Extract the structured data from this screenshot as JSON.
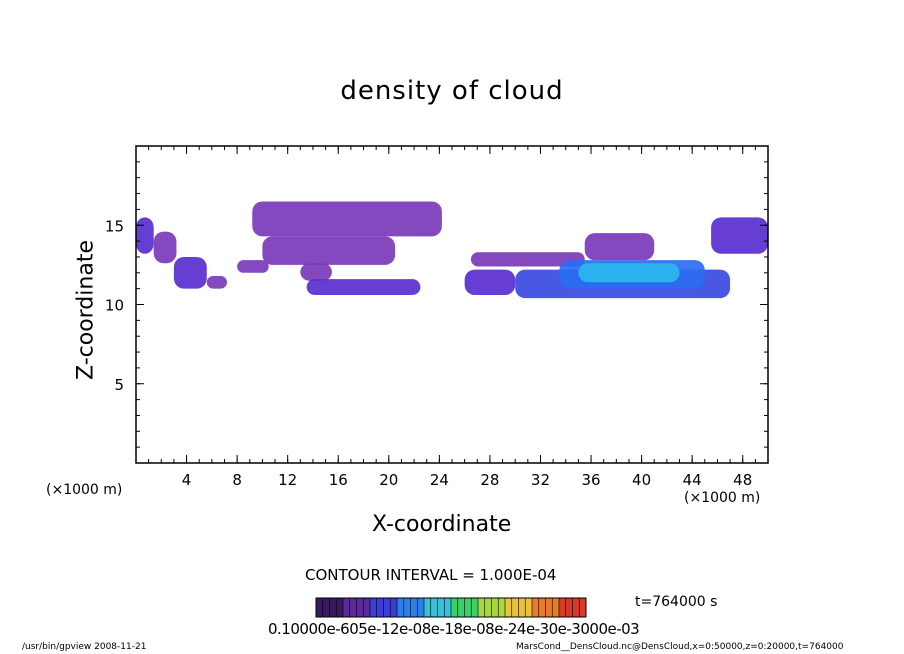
{
  "chart_data": {
    "type": "heatmap",
    "title": "density of cloud",
    "xlabel": "X-coordinate",
    "ylabel": "Z-coordinate",
    "x_unit_left": "(×1000 m)",
    "x_unit_right": "(×1000 m)",
    "xlim": [
      0,
      50
    ],
    "ylim": [
      0,
      20
    ],
    "xticks": [
      4,
      8,
      12,
      16,
      20,
      24,
      28,
      32,
      36,
      40,
      44,
      48
    ],
    "yticks": [
      5,
      10,
      15
    ],
    "contour_interval": "CONTOUR INTERVAL = 1.000E-04",
    "time": "t=764000 s",
    "colorbar_labels": "0.10000e-605e-12e-08e-18e-08e-24e-30e-3000e-03",
    "colorbar_colors": [
      "#3a1a5e",
      "#5a2a9a",
      "#3b3fd8",
      "#2a80e8",
      "#38c0d8",
      "#3ccf6a",
      "#a8d83c",
      "#e8c23c",
      "#e87a2c",
      "#d83a2a"
    ],
    "regions": [
      {
        "x0": 0,
        "x1": 1.4,
        "y0": 13.2,
        "y1": 15.5,
        "level": 1
      },
      {
        "x0": 1.4,
        "x1": 3.2,
        "y0": 12.6,
        "y1": 14.6,
        "level": 0
      },
      {
        "x0": 3.0,
        "x1": 5.6,
        "y0": 11.0,
        "y1": 13.0,
        "level": 1
      },
      {
        "x0": 5.6,
        "x1": 7.2,
        "y0": 11.0,
        "y1": 11.8,
        "level": 0
      },
      {
        "x0": 8.0,
        "x1": 10.5,
        "y0": 12.0,
        "y1": 12.8,
        "level": 0
      },
      {
        "x0": 9.2,
        "x1": 24.2,
        "y0": 14.3,
        "y1": 16.5,
        "level": 0
      },
      {
        "x0": 10.0,
        "x1": 20.5,
        "y0": 12.5,
        "y1": 14.3,
        "level": 0
      },
      {
        "x0": 13.0,
        "x1": 15.5,
        "y0": 11.5,
        "y1": 12.6,
        "level": 0
      },
      {
        "x0": 13.5,
        "x1": 22.5,
        "y0": 10.6,
        "y1": 11.6,
        "level": 1
      },
      {
        "x0": 26.0,
        "x1": 30.0,
        "y0": 10.6,
        "y1": 12.2,
        "level": 1
      },
      {
        "x0": 26.5,
        "x1": 35.5,
        "y0": 12.4,
        "y1": 13.3,
        "level": 0
      },
      {
        "x0": 30.0,
        "x1": 47.0,
        "y0": 10.4,
        "y1": 12.2,
        "level": 2
      },
      {
        "x0": 33.5,
        "x1": 45.0,
        "y0": 11.0,
        "y1": 12.8,
        "level": 3
      },
      {
        "x0": 35.0,
        "x1": 43.0,
        "y0": 11.4,
        "y1": 12.6,
        "level": 4
      },
      {
        "x0": 35.5,
        "x1": 41.0,
        "y0": 12.8,
        "y1": 14.5,
        "level": 0
      },
      {
        "x0": 45.5,
        "x1": 50.0,
        "y0": 13.2,
        "y1": 15.5,
        "level": 1
      }
    ]
  },
  "footer": {
    "left": "/usr/bin/gpview   2008-11-21",
    "right": "MarsCond__DensCloud.nc@DensCloud,x=0:50000,z=0:20000,t=764000"
  }
}
